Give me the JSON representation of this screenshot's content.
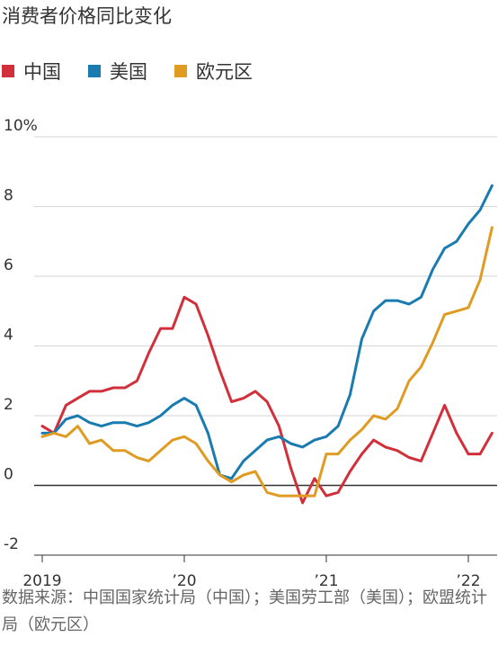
{
  "chart_data": {
    "type": "line",
    "title": "消费者价格同比变化",
    "xlabel": "",
    "ylabel": "",
    "ylim": [
      -2,
      10
    ],
    "xlim": [
      2019.0,
      2022.2
    ],
    "y_ticks": [
      {
        "value": 10,
        "label": "10%"
      },
      {
        "value": 8,
        "label": "8"
      },
      {
        "value": 6,
        "label": "6"
      },
      {
        "value": 4,
        "label": "4"
      },
      {
        "value": 2,
        "label": "2"
      },
      {
        "value": 0,
        "label": "0"
      },
      {
        "value": -2,
        "label": "-2"
      }
    ],
    "x_ticks": [
      {
        "value": 2019,
        "label": "2019"
      },
      {
        "value": 2020,
        "label": "’20"
      },
      {
        "value": 2021,
        "label": "’21"
      },
      {
        "value": 2022,
        "label": "’22"
      }
    ],
    "grid": true,
    "legend_position": "top-left",
    "series": [
      {
        "name": "中国",
        "color": "#d1303b",
        "x": [
          2019.0,
          2019.083,
          2019.167,
          2019.25,
          2019.333,
          2019.417,
          2019.5,
          2019.583,
          2019.667,
          2019.75,
          2019.833,
          2019.917,
          2020.0,
          2020.083,
          2020.167,
          2020.25,
          2020.333,
          2020.417,
          2020.5,
          2020.583,
          2020.667,
          2020.75,
          2020.833,
          2020.917,
          2021.0,
          2021.083,
          2021.167,
          2021.25,
          2021.333,
          2021.417,
          2021.5,
          2021.583,
          2021.667,
          2021.75,
          2021.833,
          2021.917,
          2022.0,
          2022.083,
          2022.167
        ],
        "values": [
          1.7,
          1.5,
          2.3,
          2.5,
          2.7,
          2.7,
          2.8,
          2.8,
          3.0,
          3.8,
          4.5,
          4.5,
          5.4,
          5.2,
          4.3,
          3.3,
          2.4,
          2.5,
          2.7,
          2.4,
          1.7,
          0.5,
          -0.5,
          0.2,
          -0.3,
          -0.2,
          0.4,
          0.9,
          1.3,
          1.1,
          1.0,
          0.8,
          0.7,
          1.5,
          2.3,
          1.5,
          0.9,
          0.9,
          1.5
        ]
      },
      {
        "name": "美国",
        "color": "#1a7bb0",
        "x": [
          2019.0,
          2019.083,
          2019.167,
          2019.25,
          2019.333,
          2019.417,
          2019.5,
          2019.583,
          2019.667,
          2019.75,
          2019.833,
          2019.917,
          2020.0,
          2020.083,
          2020.167,
          2020.25,
          2020.333,
          2020.417,
          2020.5,
          2020.583,
          2020.667,
          2020.75,
          2020.833,
          2020.917,
          2021.0,
          2021.083,
          2021.167,
          2021.25,
          2021.333,
          2021.417,
          2021.5,
          2021.583,
          2021.667,
          2021.75,
          2021.833,
          2021.917,
          2022.0,
          2022.083,
          2022.167
        ],
        "values": [
          1.5,
          1.5,
          1.9,
          2.0,
          1.8,
          1.7,
          1.8,
          1.8,
          1.7,
          1.8,
          2.0,
          2.3,
          2.5,
          2.3,
          1.5,
          0.3,
          0.2,
          0.7,
          1.0,
          1.3,
          1.4,
          1.2,
          1.1,
          1.3,
          1.4,
          1.7,
          2.6,
          4.2,
          5.0,
          5.3,
          5.3,
          5.2,
          5.4,
          6.2,
          6.8,
          7.0,
          7.5,
          7.9,
          8.6
        ]
      },
      {
        "name": "欧元区",
        "color": "#e09b22",
        "x": [
          2019.0,
          2019.083,
          2019.167,
          2019.25,
          2019.333,
          2019.417,
          2019.5,
          2019.583,
          2019.667,
          2019.75,
          2019.833,
          2019.917,
          2020.0,
          2020.083,
          2020.167,
          2020.25,
          2020.333,
          2020.417,
          2020.5,
          2020.583,
          2020.667,
          2020.75,
          2020.833,
          2020.917,
          2021.0,
          2021.083,
          2021.167,
          2021.25,
          2021.333,
          2021.417,
          2021.5,
          2021.583,
          2021.667,
          2021.75,
          2021.833,
          2021.917,
          2022.0,
          2022.083,
          2022.167
        ],
        "values": [
          1.4,
          1.5,
          1.4,
          1.7,
          1.2,
          1.3,
          1.0,
          1.0,
          0.8,
          0.7,
          1.0,
          1.3,
          1.4,
          1.2,
          0.7,
          0.3,
          0.1,
          0.3,
          0.4,
          -0.2,
          -0.3,
          -0.3,
          -0.3,
          -0.3,
          0.9,
          0.9,
          1.3,
          1.6,
          2.0,
          1.9,
          2.2,
          3.0,
          3.4,
          4.1,
          4.9,
          5.0,
          5.1,
          5.9,
          7.4
        ]
      }
    ]
  },
  "source": "数据来源：中国国家统计局（中国）；美国劳工部（美国）；欧盟统计局（欧元区）"
}
